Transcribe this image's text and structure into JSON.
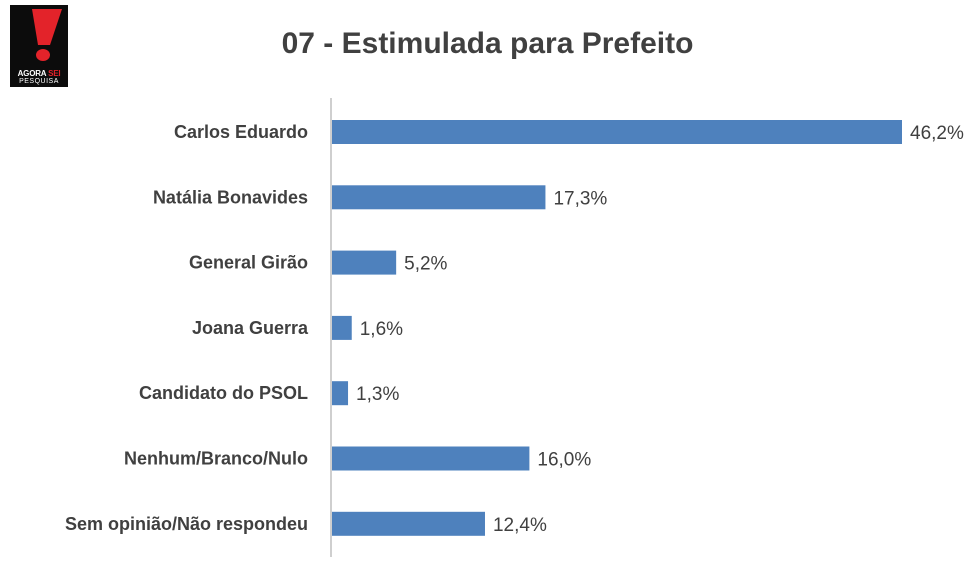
{
  "logo": {
    "word1": "AGORA",
    "word2": "SEI",
    "word3": "PESQUISA",
    "accent_color": "#e3232a"
  },
  "chart_data": {
    "type": "bar",
    "orientation": "horizontal",
    "title": "07 - Estimulada para Prefeito",
    "categories": [
      "Carlos Eduardo",
      "Natália Bonavides",
      "General Girão",
      "Joana Guerra",
      "Candidato do PSOL",
      "Nenhum/Branco/Nulo",
      "Sem opinião/Não respondeu"
    ],
    "values": [
      46.2,
      17.3,
      5.2,
      1.6,
      1.3,
      16.0,
      12.4
    ],
    "data_labels": [
      "46,2%",
      "17,3%",
      "5,2%",
      "1,6%",
      "1,3%",
      "16,0%",
      "12,4%"
    ],
    "unit": "%",
    "xlim": [
      0,
      46.2
    ],
    "bar_color": "#4e81bd",
    "grid": false,
    "legend": "none"
  }
}
